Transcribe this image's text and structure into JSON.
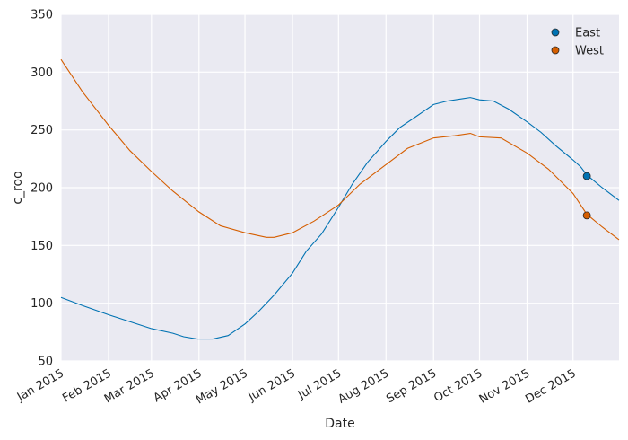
{
  "chart_data": {
    "type": "line",
    "xlabel": "Date",
    "ylabel": "c_roo",
    "xlim": [
      "2015-01-01",
      "2015-12-31"
    ],
    "ylim": [
      50,
      350
    ],
    "yticks": [
      50,
      100,
      150,
      200,
      250,
      300,
      350
    ],
    "xticks": [
      {
        "date": "2015-01-01",
        "label": "Jan 2015"
      },
      {
        "date": "2015-02-01",
        "label": "Feb 2015"
      },
      {
        "date": "2015-03-01",
        "label": "Mar 2015"
      },
      {
        "date": "2015-04-01",
        "label": "Apr 2015"
      },
      {
        "date": "2015-05-01",
        "label": "May 2015"
      },
      {
        "date": "2015-06-01",
        "label": "Jun 2015"
      },
      {
        "date": "2015-07-01",
        "label": "Jul 2015"
      },
      {
        "date": "2015-08-01",
        "label": "Aug 2015"
      },
      {
        "date": "2015-09-01",
        "label": "Sep 2015"
      },
      {
        "date": "2015-10-01",
        "label": "Oct 2015"
      },
      {
        "date": "2015-11-01",
        "label": "Nov 2015"
      },
      {
        "date": "2015-12-01",
        "label": "Dec 2015"
      }
    ],
    "grid": true,
    "legend_position": "top-right",
    "series": [
      {
        "name": "East",
        "color": "#0072b2",
        "points": [
          [
            "2015-01-01",
            105
          ],
          [
            "2015-01-15",
            98
          ],
          [
            "2015-02-01",
            90
          ],
          [
            "2015-02-15",
            84
          ],
          [
            "2015-03-01",
            78
          ],
          [
            "2015-03-15",
            74
          ],
          [
            "2015-03-22",
            71
          ],
          [
            "2015-03-31",
            69
          ],
          [
            "2015-04-10",
            69
          ],
          [
            "2015-04-20",
            72
          ],
          [
            "2015-05-01",
            82
          ],
          [
            "2015-05-10",
            93
          ],
          [
            "2015-05-20",
            107
          ],
          [
            "2015-06-01",
            126
          ],
          [
            "2015-06-10",
            145
          ],
          [
            "2015-06-20",
            160
          ],
          [
            "2015-07-01",
            183
          ],
          [
            "2015-07-10",
            203
          ],
          [
            "2015-07-20",
            222
          ],
          [
            "2015-08-01",
            240
          ],
          [
            "2015-08-10",
            252
          ],
          [
            "2015-08-20",
            261
          ],
          [
            "2015-09-01",
            272
          ],
          [
            "2015-09-10",
            275
          ],
          [
            "2015-09-20",
            277
          ],
          [
            "2015-09-25",
            278
          ],
          [
            "2015-10-01",
            276
          ],
          [
            "2015-10-10",
            275
          ],
          [
            "2015-10-20",
            268
          ],
          [
            "2015-11-01",
            257
          ],
          [
            "2015-11-10",
            248
          ],
          [
            "2015-11-20",
            236
          ],
          [
            "2015-12-01",
            224
          ],
          [
            "2015-12-06",
            218
          ],
          [
            "2015-12-10",
            211
          ],
          [
            "2015-12-20",
            200
          ],
          [
            "2015-12-31",
            189
          ]
        ],
        "marker": {
          "date": "2015-12-10",
          "value": 210
        }
      },
      {
        "name": "West",
        "color": "#d55e00",
        "points": [
          [
            "2015-01-01",
            311
          ],
          [
            "2015-01-15",
            283
          ],
          [
            "2015-02-01",
            254
          ],
          [
            "2015-02-15",
            232
          ],
          [
            "2015-03-01",
            214
          ],
          [
            "2015-03-15",
            197
          ],
          [
            "2015-04-01",
            179
          ],
          [
            "2015-04-15",
            167
          ],
          [
            "2015-05-01",
            161
          ],
          [
            "2015-05-15",
            157
          ],
          [
            "2015-05-20",
            157
          ],
          [
            "2015-06-01",
            161
          ],
          [
            "2015-06-15",
            171
          ],
          [
            "2015-07-01",
            185
          ],
          [
            "2015-07-15",
            203
          ],
          [
            "2015-08-01",
            220
          ],
          [
            "2015-08-15",
            234
          ],
          [
            "2015-09-01",
            243
          ],
          [
            "2015-09-15",
            245
          ],
          [
            "2015-09-25",
            247
          ],
          [
            "2015-10-01",
            244
          ],
          [
            "2015-10-15",
            243
          ],
          [
            "2015-11-01",
            230
          ],
          [
            "2015-11-15",
            216
          ],
          [
            "2015-12-01",
            195
          ],
          [
            "2015-12-10",
            177
          ],
          [
            "2015-12-20",
            166
          ],
          [
            "2015-12-31",
            155
          ]
        ],
        "marker": {
          "date": "2015-12-10",
          "value": 176
        }
      }
    ]
  }
}
